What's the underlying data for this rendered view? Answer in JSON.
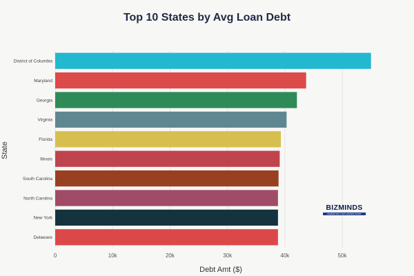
{
  "chart_data": {
    "type": "bar",
    "orientation": "horizontal",
    "title": "Top 10 States by Avg Loan Debt",
    "xlabel": "Debt Amt ($)",
    "ylabel": "State",
    "xlim": [
      0,
      56000
    ],
    "xticks": [
      0,
      10000,
      20000,
      30000,
      40000,
      50000
    ],
    "xtick_labels": [
      "0",
      "10k",
      "20k",
      "30k",
      "40k",
      "50k"
    ],
    "grid": "vertical",
    "categories": [
      "District of Columbia",
      "Maryland",
      "Georgia",
      "Virginia",
      "Florida",
      "Illinois",
      "South Carolina",
      "North Carolina",
      "New York",
      "Delaware"
    ],
    "values": [
      55000,
      43700,
      42100,
      40300,
      39300,
      39100,
      38900,
      38800,
      38800,
      38800
    ],
    "colors": [
      "#22b8cf",
      "#dd4a4a",
      "#2e8b57",
      "#5f8791",
      "#d6bf4e",
      "#c0444d",
      "#9a4022",
      "#a04c68",
      "#14333f",
      "#dc4848"
    ]
  },
  "logo": {
    "name": "BIZMINDS",
    "tagline": "MARKETING THAT GROWS TRUST"
  }
}
